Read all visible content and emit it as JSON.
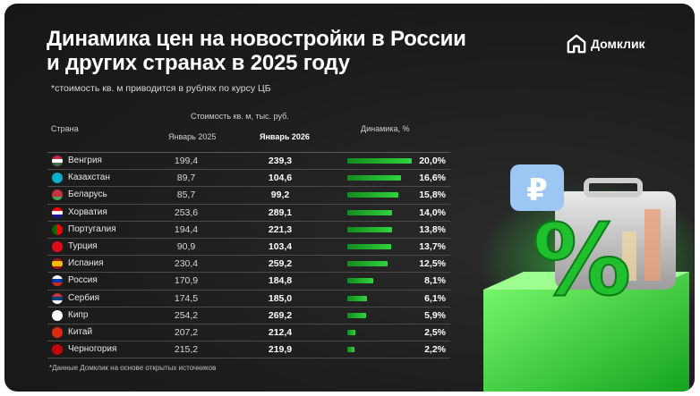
{
  "title_line1": "Динамика цен на новостройки в России",
  "title_line2": "и других странах в 2025 году",
  "subtitle": "*стоимость кв. м приводится в рублях по курсу ЦБ",
  "logo_text": "Домклик",
  "footnote": "*Данные Домклик на основе открытых источников",
  "headers": {
    "country": "Страна",
    "price_group": "Стоимость кв. м, тыс. руб.",
    "jan2025": "Январь 2025",
    "jan2026": "Январь 2026",
    "dynamics": "Динамика, %"
  },
  "rows": [
    {
      "country": "Венгрия",
      "jan2025": "199,4",
      "jan2026": "239,3",
      "dynamics": "20,0%"
    },
    {
      "country": "Казахстан",
      "jan2025": "89,7",
      "jan2026": "104,6",
      "dynamics": "16,6%"
    },
    {
      "country": "Беларусь",
      "jan2025": "85,7",
      "jan2026": "99,2",
      "dynamics": "15,8%"
    },
    {
      "country": "Хорватия",
      "jan2025": "253,6",
      "jan2026": "289,1",
      "dynamics": "14,0%"
    },
    {
      "country": "Португалия",
      "jan2025": "194,4",
      "jan2026": "221,3",
      "dynamics": "13,8%"
    },
    {
      "country": "Турция",
      "jan2025": "90,9",
      "jan2026": "103,4",
      "dynamics": "13,7%"
    },
    {
      "country": "Испания",
      "jan2025": "230,4",
      "jan2026": "259,2",
      "dynamics": "12,5%"
    },
    {
      "country": "Россия",
      "jan2025": "170,9",
      "jan2026": "184,8",
      "dynamics": "8,1%"
    },
    {
      "country": "Сербия",
      "jan2025": "174,5",
      "jan2026": "185,0",
      "dynamics": "6,1%"
    },
    {
      "country": "Кипр",
      "jan2025": "254,2",
      "jan2026": "269,2",
      "dynamics": "5,9%"
    },
    {
      "country": "Китай",
      "jan2025": "207,2",
      "jan2026": "212,4",
      "dynamics": "2,5%"
    },
    {
      "country": "Черногория",
      "jan2025": "215,2",
      "jan2026": "219,9",
      "dynamics": "2,2%"
    }
  ],
  "chart_data": {
    "type": "bar",
    "categories": [
      "Венгрия",
      "Казахстан",
      "Беларусь",
      "Хорватия",
      "Португалия",
      "Турция",
      "Испания",
      "Россия",
      "Сербия",
      "Кипр",
      "Китай",
      "Черногория"
    ],
    "values": [
      20.0,
      16.6,
      15.8,
      14.0,
      13.8,
      13.7,
      12.5,
      8.1,
      6.1,
      5.9,
      2.5,
      2.2
    ],
    "series": [
      {
        "name": "Январь 2025",
        "values": [
          199.4,
          89.7,
          85.7,
          253.6,
          194.4,
          90.9,
          230.4,
          170.9,
          174.5,
          254.2,
          207.2,
          215.2
        ]
      },
      {
        "name": "Январь 2026",
        "values": [
          239.3,
          104.6,
          99.2,
          289.1,
          221.3,
          103.4,
          259.2,
          184.8,
          185.0,
          269.2,
          212.4,
          219.9
        ]
      }
    ],
    "title": "Динамика цен на новостройки в России и других странах в 2025 году",
    "ylabel": "Динамика, %",
    "xlim": [
      0,
      20
    ]
  },
  "illustration": {
    "ruble_icon": "ruble-sign-icon",
    "percent_symbol": "%",
    "colors": {
      "accent": "#2fd43d",
      "bar_dark": "#138a1e",
      "bg": "#1d1d1d"
    }
  }
}
